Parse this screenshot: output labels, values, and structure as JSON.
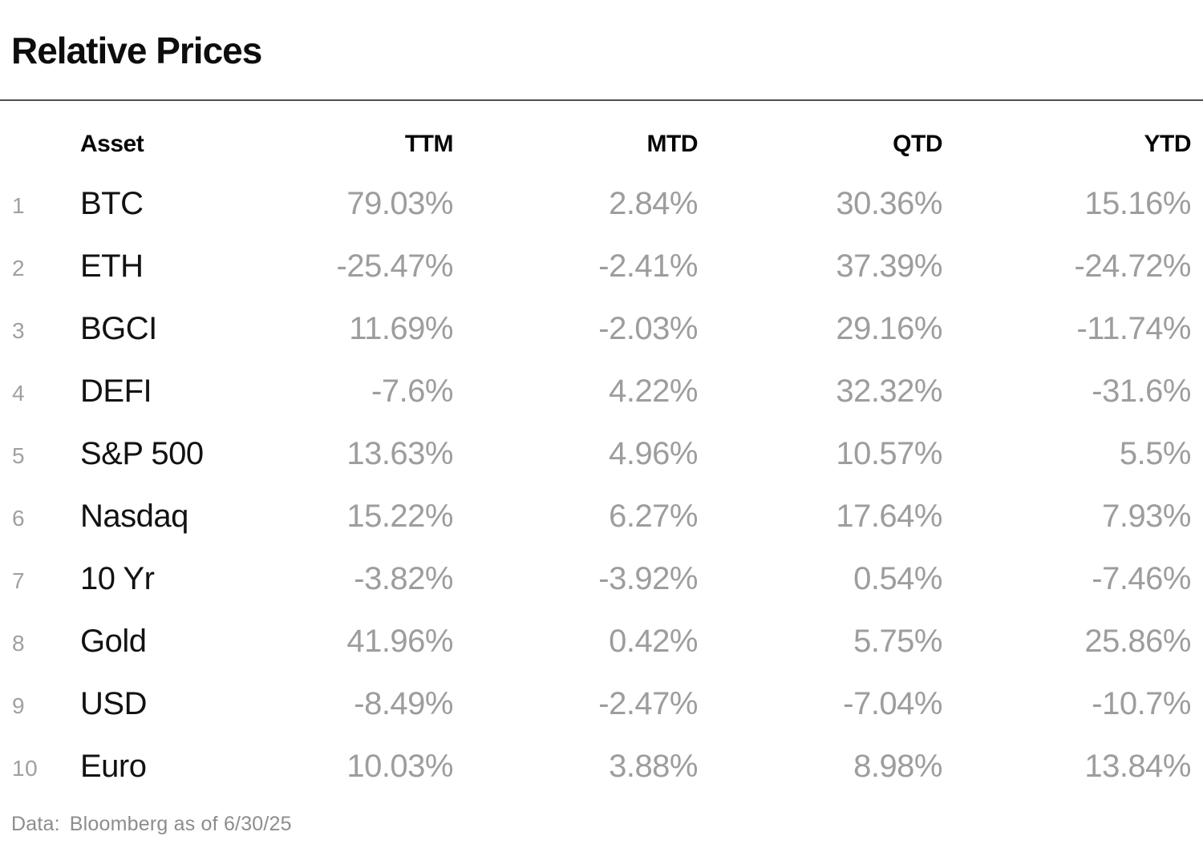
{
  "title": "Relative Prices",
  "table": {
    "columns": [
      "Asset",
      "TTM",
      "MTD",
      "QTD",
      "YTD"
    ],
    "rows": [
      {
        "rank": "1",
        "asset": "BTC",
        "ttm": "79.03%",
        "mtd": "2.84%",
        "qtd": "30.36%",
        "ytd": "15.16%"
      },
      {
        "rank": "2",
        "asset": "ETH",
        "ttm": "-25.47%",
        "mtd": "-2.41%",
        "qtd": "37.39%",
        "ytd": "-24.72%"
      },
      {
        "rank": "3",
        "asset": "BGCI",
        "ttm": "11.69%",
        "mtd": "-2.03%",
        "qtd": "29.16%",
        "ytd": "-11.74%"
      },
      {
        "rank": "4",
        "asset": "DEFI",
        "ttm": "-7.6%",
        "mtd": "4.22%",
        "qtd": "32.32%",
        "ytd": "-31.6%"
      },
      {
        "rank": "5",
        "asset": "S&P 500",
        "ttm": "13.63%",
        "mtd": "4.96%",
        "qtd": "10.57%",
        "ytd": "5.5%"
      },
      {
        "rank": "6",
        "asset": "Nasdaq",
        "ttm": "15.22%",
        "mtd": "6.27%",
        "qtd": "17.64%",
        "ytd": "7.93%"
      },
      {
        "rank": "7",
        "asset": "10 Yr",
        "ttm": "-3.82%",
        "mtd": "-3.92%",
        "qtd": "0.54%",
        "ytd": "-7.46%"
      },
      {
        "rank": "8",
        "asset": "Gold",
        "ttm": "41.96%",
        "mtd": "0.42%",
        "qtd": "5.75%",
        "ytd": "25.86%"
      },
      {
        "rank": "9",
        "asset": "USD",
        "ttm": "-8.49%",
        "mtd": "-2.47%",
        "qtd": "-7.04%",
        "ytd": "-10.7%"
      },
      {
        "rank": "10",
        "asset": "Euro",
        "ttm": "10.03%",
        "mtd": "3.88%",
        "qtd": "8.98%",
        "ytd": "13.84%"
      }
    ]
  },
  "footer": {
    "label": "Data:",
    "source": "Bloomberg as of 6/30/25"
  },
  "colors": {
    "text": "#0d0d0d",
    "muted_value": "#9d9d9d",
    "rank": "#a0a0a0",
    "footer": "#8d8d8d",
    "divider": "#4f4f4f",
    "background": "#ffffff"
  },
  "chart_data": {
    "type": "table",
    "title": "Relative Prices",
    "columns": [
      "Asset",
      "TTM",
      "MTD",
      "QTD",
      "YTD"
    ],
    "rows": [
      [
        "BTC",
        79.03,
        2.84,
        30.36,
        15.16
      ],
      [
        "ETH",
        -25.47,
        -2.41,
        37.39,
        -24.72
      ],
      [
        "BGCI",
        11.69,
        -2.03,
        29.16,
        -11.74
      ],
      [
        "DEFI",
        -7.6,
        4.22,
        32.32,
        -31.6
      ],
      [
        "S&P 500",
        13.63,
        4.96,
        10.57,
        5.5
      ],
      [
        "Nasdaq",
        15.22,
        6.27,
        17.64,
        7.93
      ],
      [
        "10 Yr",
        -3.82,
        -3.92,
        0.54,
        -7.46
      ],
      [
        "Gold",
        41.96,
        0.42,
        5.75,
        25.86
      ],
      [
        "USD",
        -8.49,
        -2.47,
        -7.04,
        -10.7
      ],
      [
        "Euro",
        10.03,
        3.88,
        8.98,
        13.84
      ]
    ],
    "units": "percent",
    "note": "values rendered gray, asset names black, rank numbers gray"
  }
}
